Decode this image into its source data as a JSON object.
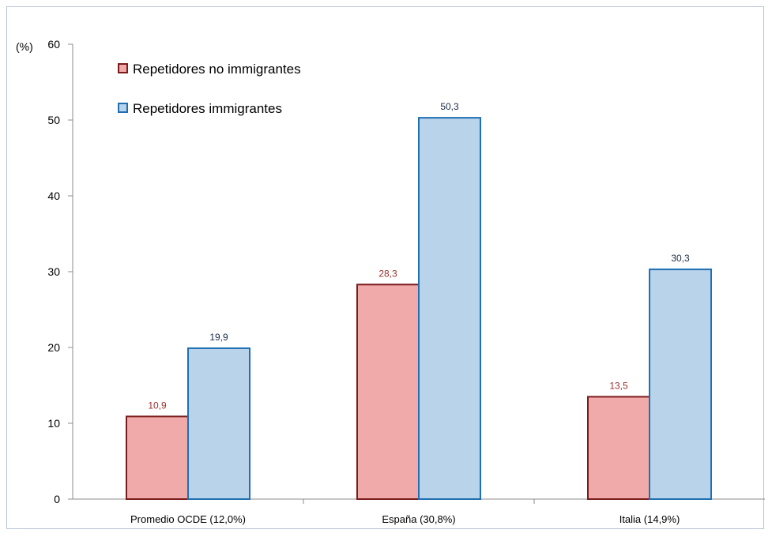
{
  "chart_data": {
    "type": "bar",
    "ylabel": "(%)",
    "ylim": [
      0,
      60
    ],
    "yticks": [
      0,
      10,
      20,
      30,
      40,
      50,
      60
    ],
    "categories": [
      "Promedio OCDE (12,0%)",
      "España (30,8%)",
      "Italia (14,9%)"
    ],
    "series": [
      {
        "name": "Repetidores no immigrantes",
        "values": [
          10.9,
          28.3,
          13.5
        ],
        "labels": [
          "10,9",
          "28,3",
          "13,5"
        ],
        "fill": "#f0aaaa",
        "stroke": "#7b1c1c",
        "label_color": "#9a3030"
      },
      {
        "name": "Repetidores immigrantes",
        "values": [
          19.9,
          50.3,
          30.3
        ],
        "labels": [
          "19,9",
          "50,3",
          "30,3"
        ],
        "fill": "#b8d3ea",
        "stroke": "#1f6fb2",
        "label_color": "#1a2a44"
      }
    ],
    "legend_position": "top-left",
    "grid": false
  }
}
